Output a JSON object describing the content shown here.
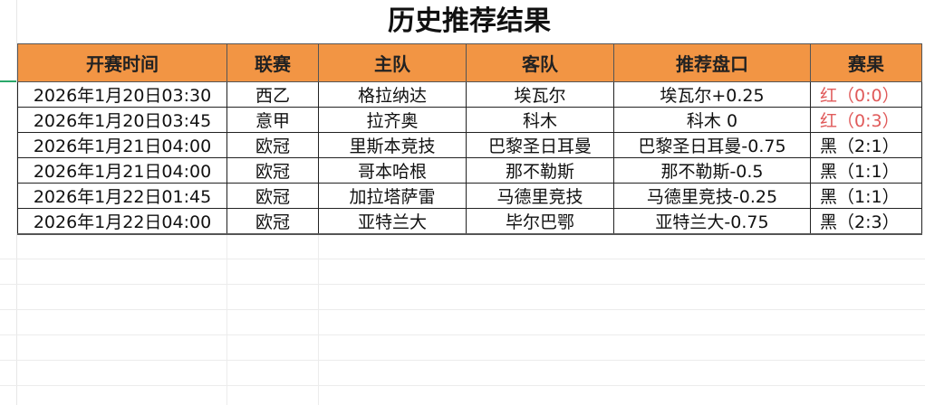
{
  "title": "历史推荐结果",
  "colors": {
    "header_bg": "#f29544",
    "win": "#e05a5a",
    "loss": "#111111"
  },
  "table": {
    "columns": [
      "开赛时间",
      "联赛",
      "主队",
      "客队",
      "推荐盘口",
      "赛果"
    ],
    "rows": [
      {
        "time": "2026年1月20日03:30",
        "league": "西乙",
        "home": "格拉纳达",
        "away": "埃瓦尔",
        "pick": "埃瓦尔+0.25",
        "result": "红（0:0）",
        "status": "red"
      },
      {
        "time": "2026年1月20日03:45",
        "league": "意甲",
        "home": "拉齐奥",
        "away": "科木",
        "pick": "科木 0",
        "result": "红（0:3）",
        "status": "red"
      },
      {
        "time": "2026年1月21日04:00",
        "league": "欧冠",
        "home": "里斯本竞技",
        "away": "巴黎圣日耳曼",
        "pick": "巴黎圣日耳曼-0.75",
        "result": "黑（2:1）",
        "status": "black"
      },
      {
        "time": "2026年1月21日04:00",
        "league": "欧冠",
        "home": "哥本哈根",
        "away": "那不勒斯",
        "pick": "那不勒斯-0.5",
        "result": "黑（1:1）",
        "status": "black"
      },
      {
        "time": "2026年1月22日01:45",
        "league": "欧冠",
        "home": "加拉塔萨雷",
        "away": "马德里竞技",
        "pick": "马德里竞技-0.25",
        "result": "黑（1:1）",
        "status": "black"
      },
      {
        "time": "2026年1月22日04:00",
        "league": "欧冠",
        "home": "亚特兰大",
        "away": "毕尔巴鄂",
        "pick": "亚特兰大-0.75",
        "result": "黑（2:3）",
        "status": "black"
      }
    ]
  }
}
